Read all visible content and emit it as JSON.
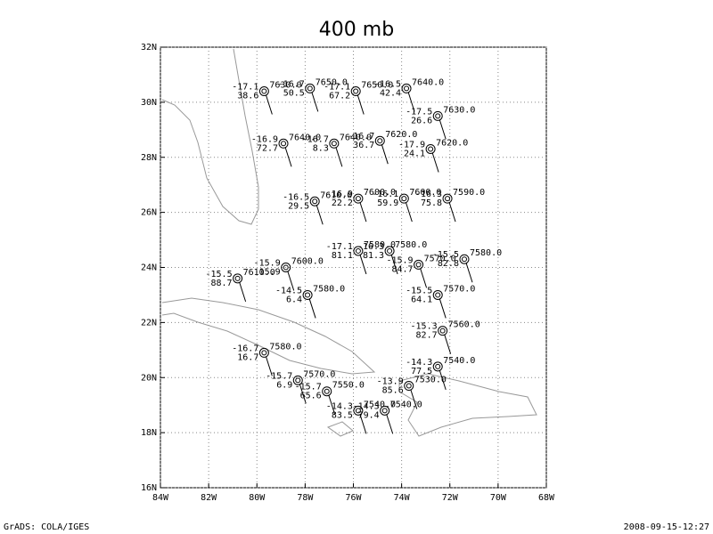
{
  "title": "400 mb",
  "footer": {
    "left": "GrADS: COLA/IGES",
    "right": "2008-09-15-12:27"
  },
  "map": {
    "lonlim": [
      -84,
      -68
    ],
    "latlim": [
      16,
      32
    ],
    "lonticks": [
      {
        "value": -84,
        "label": "84W"
      },
      {
        "value": -82,
        "label": "82W"
      },
      {
        "value": -80,
        "label": "80W"
      },
      {
        "value": -78,
        "label": "78W"
      },
      {
        "value": -76,
        "label": "76W"
      },
      {
        "value": -74,
        "label": "74W"
      },
      {
        "value": -72,
        "label": "72W"
      },
      {
        "value": -70,
        "label": "70W"
      },
      {
        "value": -68,
        "label": "68W"
      }
    ],
    "latticks": [
      {
        "value": 16,
        "label": "16N"
      },
      {
        "value": 18,
        "label": "18N"
      },
      {
        "value": 20,
        "label": "20N"
      },
      {
        "value": 22,
        "label": "22N"
      },
      {
        "value": 24,
        "label": "24N"
      },
      {
        "value": 26,
        "label": "26N"
      },
      {
        "value": 28,
        "label": "28N"
      },
      {
        "value": 30,
        "label": "30N"
      },
      {
        "value": 32,
        "label": "32N"
      }
    ],
    "stations": [
      {
        "lon": -79.7,
        "lat": 30.4,
        "temp": "-17.1",
        "dew": "38.6",
        "height": "7630.0"
      },
      {
        "lon": -77.8,
        "lat": 30.5,
        "temp": "-16.7",
        "dew": "50.5",
        "height": "7650.0"
      },
      {
        "lon": -75.9,
        "lat": 30.4,
        "temp": "-17.1",
        "dew": "67.2",
        "height": "7650.0"
      },
      {
        "lon": -73.8,
        "lat": 30.5,
        "temp": "-16.5",
        "dew": "42.4",
        "height": "7640.0"
      },
      {
        "lon": -72.5,
        "lat": 29.5,
        "temp": "-17.5",
        "dew": "26.6",
        "height": "7630.0"
      },
      {
        "lon": -78.9,
        "lat": 28.5,
        "temp": "-16.9",
        "dew": "72.7",
        "height": "7640.0"
      },
      {
        "lon": -76.8,
        "lat": 28.5,
        "temp": "-16.7",
        "dew": "8.3",
        "height": "7640.0"
      },
      {
        "lon": -74.9,
        "lat": 28.6,
        "temp": "-16.7",
        "dew": "36.7",
        "height": "7620.0"
      },
      {
        "lon": -72.8,
        "lat": 28.3,
        "temp": "-17.9",
        "dew": "24.1",
        "height": "7620.0"
      },
      {
        "lon": -77.6,
        "lat": 26.4,
        "temp": "-16.5",
        "dew": "29.5",
        "height": "7610.0"
      },
      {
        "lon": -75.8,
        "lat": 26.5,
        "temp": "-16.9",
        "dew": "22.2",
        "height": "7600.0"
      },
      {
        "lon": -73.9,
        "lat": 26.5,
        "temp": "-16.1",
        "dew": "59.9",
        "height": "7600.0"
      },
      {
        "lon": -72.1,
        "lat": 26.5,
        "temp": "-16.3",
        "dew": "75.8",
        "height": "7590.0"
      },
      {
        "lon": -75.8,
        "lat": 24.6,
        "temp": "-17.1",
        "dew": "81.1",
        "height": "7580.0"
      },
      {
        "lon": -74.5,
        "lat": 24.6,
        "temp": "-16.3",
        "dew": "81.3",
        "height": "7580.0"
      },
      {
        "lon": -73.3,
        "lat": 24.1,
        "temp": "-15.9",
        "dew": "84.7",
        "height": "7570.0"
      },
      {
        "lon": -71.4,
        "lat": 24.3,
        "temp": "-15.5",
        "dew": "82.8",
        "height": "7580.0"
      },
      {
        "lon": -78.8,
        "lat": 24.0,
        "temp": "-15.9",
        "dew": "15.9",
        "height": "7600.0"
      },
      {
        "lon": -80.8,
        "lat": 23.6,
        "temp": "-15.5",
        "dew": "88.7",
        "height": "7610.0"
      },
      {
        "lon": -77.9,
        "lat": 23.0,
        "temp": "-14.5",
        "dew": "6.4",
        "height": "7580.0"
      },
      {
        "lon": -72.5,
        "lat": 23.0,
        "temp": "-15.5",
        "dew": "64.1",
        "height": "7570.0"
      },
      {
        "lon": -72.3,
        "lat": 21.7,
        "temp": "-15.3",
        "dew": "82.7",
        "height": "7560.0"
      },
      {
        "lon": -79.7,
        "lat": 20.9,
        "temp": "-16.7",
        "dew": "16.7",
        "height": "7580.0"
      },
      {
        "lon": -72.5,
        "lat": 20.4,
        "temp": "-14.3",
        "dew": "77.5",
        "height": "7540.0"
      },
      {
        "lon": -78.3,
        "lat": 19.9,
        "temp": "-15.7",
        "dew": "6.9",
        "height": "7570.0"
      },
      {
        "lon": -77.1,
        "lat": 19.5,
        "temp": "-15.7",
        "dew": "65.6",
        "height": "7550.0"
      },
      {
        "lon": -73.7,
        "lat": 19.7,
        "temp": "-13.9",
        "dew": "85.6",
        "height": "7530.0"
      },
      {
        "lon": -75.8,
        "lat": 18.8,
        "temp": "-14.3",
        "dew": "83.5",
        "height": "7540.0"
      },
      {
        "lon": -74.7,
        "lat": 18.8,
        "temp": "-14.3",
        "dew": "79.4",
        "height": "7540.0"
      }
    ]
  }
}
